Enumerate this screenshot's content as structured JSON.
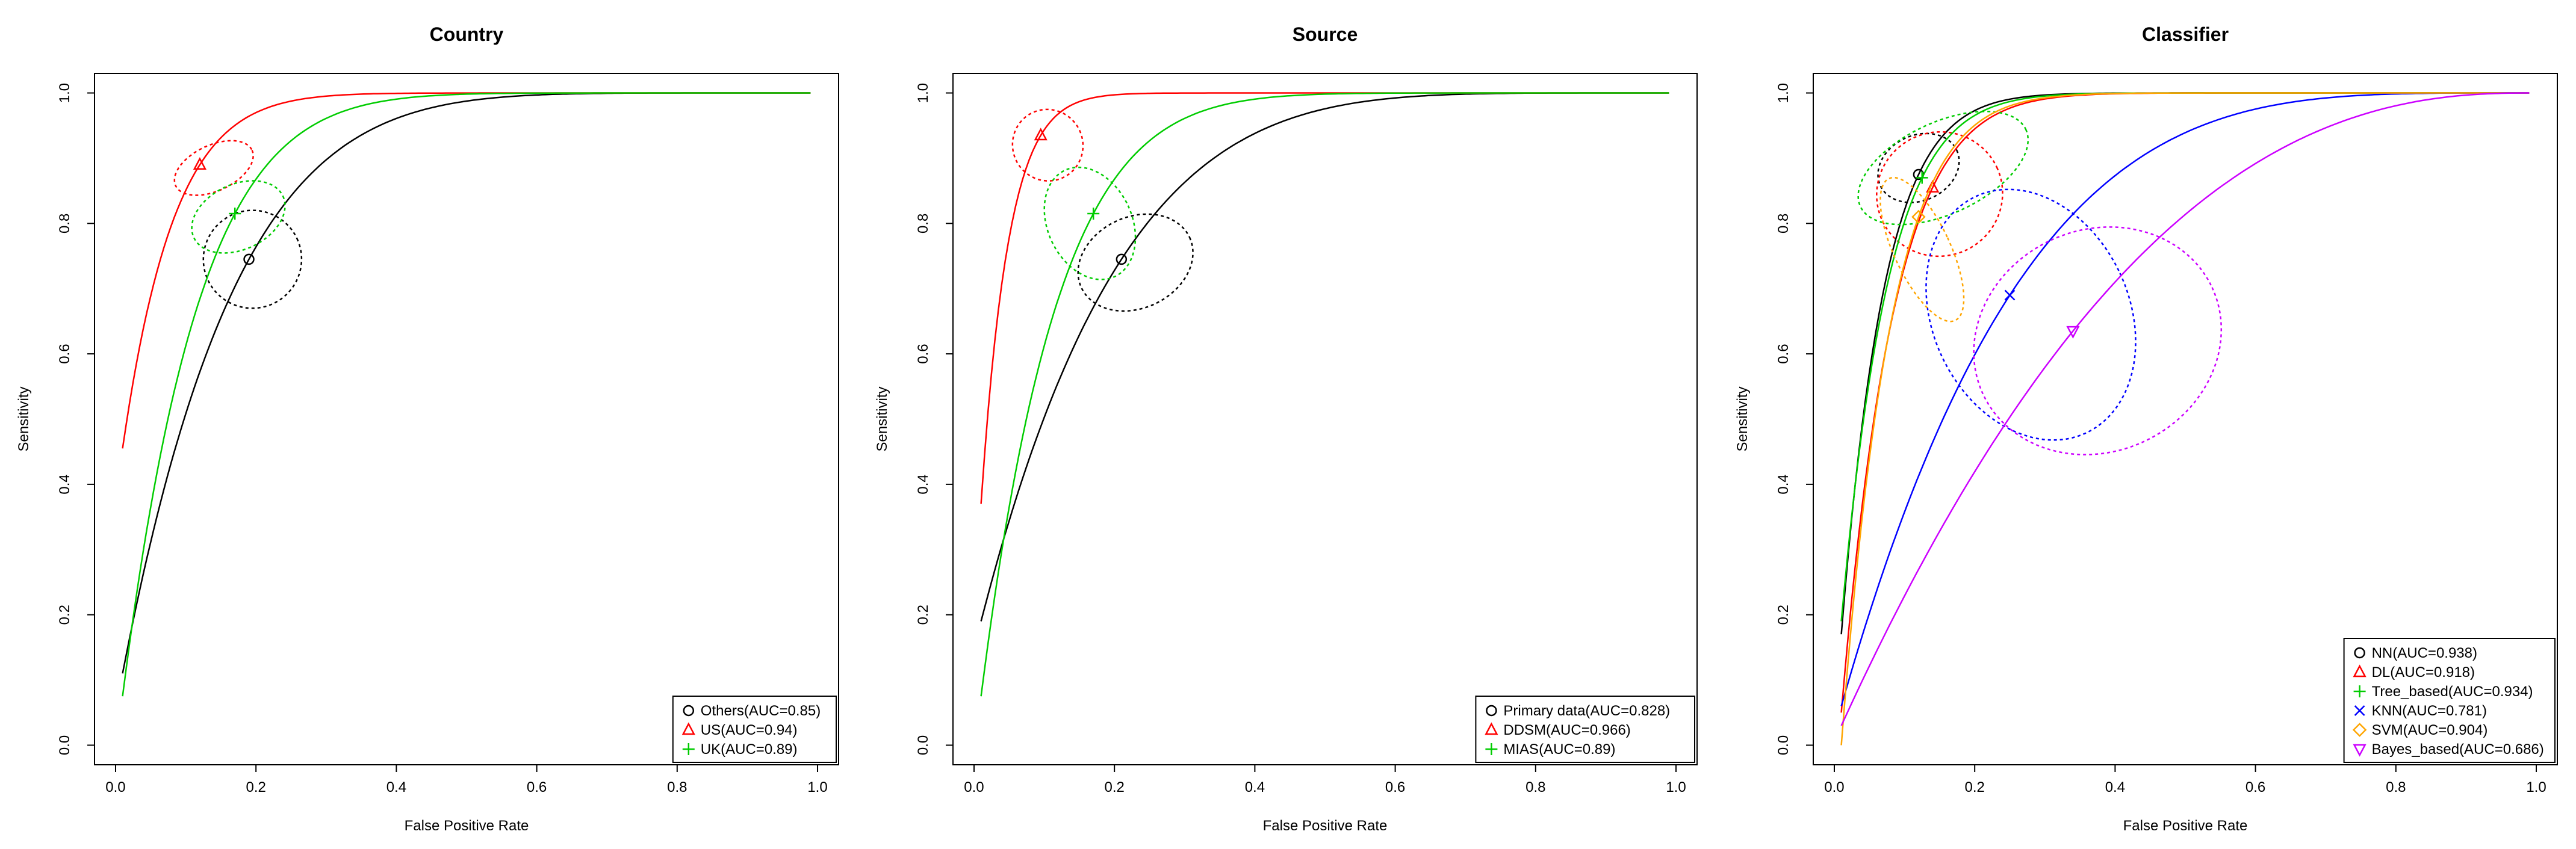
{
  "chart_data": [
    {
      "type": "line",
      "title": "Country",
      "xlabel": "False Positive Rate",
      "ylabel": "Sensitivity",
      "xlim": [
        0,
        1
      ],
      "ylim": [
        0,
        1
      ],
      "xticks": [
        "0.0",
        "0.2",
        "0.4",
        "0.6",
        "0.8",
        "1.0"
      ],
      "yticks": [
        "0.0",
        "0.2",
        "0.4",
        "0.6",
        "0.8",
        "1.0"
      ],
      "legend_position": "bottom-right",
      "series": [
        {
          "name": "Others(AUC=0.85)",
          "color": "#000000",
          "marker": "circle",
          "point": [
            0.19,
            0.745
          ],
          "start": 0.11,
          "ellipse": {
            "rx": 0.07,
            "ry": 0.075,
            "center": [
              0.195,
              0.745
            ]
          }
        },
        {
          "name": "US(AUC=0.94)",
          "color": "#ff0000",
          "marker": "triangle",
          "point": [
            0.12,
            0.89
          ],
          "start": 0.455,
          "ellipse": {
            "rx": 0.06,
            "ry": 0.035,
            "center": [
              0.14,
              0.885
            ]
          }
        },
        {
          "name": "UK(AUC=0.89)",
          "color": "#00cc00",
          "marker": "plus",
          "point": [
            0.17,
            0.815
          ],
          "start": 0.075,
          "ellipse": {
            "rx": 0.07,
            "ry": 0.05,
            "center": [
              0.175,
              0.81
            ]
          }
        }
      ]
    },
    {
      "type": "line",
      "title": "Source",
      "xlabel": "False Positive Rate",
      "ylabel": "Sensitivity",
      "xlim": [
        0,
        1
      ],
      "ylim": [
        0,
        1
      ],
      "xticks": [
        "0.0",
        "0.2",
        "0.4",
        "0.6",
        "0.8",
        "1.0"
      ],
      "yticks": [
        "0.0",
        "0.2",
        "0.4",
        "0.6",
        "0.8",
        "1.0"
      ],
      "legend_position": "bottom-right",
      "series": [
        {
          "name": "Primary data(AUC=0.828)",
          "color": "#000000",
          "marker": "circle",
          "point": [
            0.21,
            0.745
          ],
          "start": 0.19,
          "ellipse": {
            "rx": 0.085,
            "ry": 0.07,
            "center": [
              0.23,
              0.74
            ]
          }
        },
        {
          "name": "DDSM(AUC=0.966)",
          "color": "#ff0000",
          "marker": "triangle",
          "point": [
            0.095,
            0.935
          ],
          "start": 0.37,
          "ellipse": {
            "rx": 0.05,
            "ry": 0.055,
            "center": [
              0.105,
              0.92
            ]
          }
        },
        {
          "name": "MIAS(AUC=0.89)",
          "color": "#00cc00",
          "marker": "plus",
          "point": [
            0.17,
            0.815
          ],
          "start": 0.075,
          "ellipse": {
            "rx": 0.06,
            "ry": 0.09,
            "center": [
              0.165,
              0.8
            ]
          }
        }
      ]
    },
    {
      "type": "line",
      "title": "Classifier",
      "xlabel": "False Positive Rate",
      "ylabel": "Sensitivity",
      "xlim": [
        0,
        1
      ],
      "ylim": [
        0,
        1
      ],
      "xticks": [
        "0.0",
        "0.2",
        "0.4",
        "0.6",
        "0.8",
        "1.0"
      ],
      "yticks": [
        "0.0",
        "0.2",
        "0.4",
        "0.6",
        "0.8",
        "1.0"
      ],
      "legend_position": "bottom-right",
      "series": [
        {
          "name": "NN(AUC=0.938)",
          "color": "#000000",
          "marker": "circle",
          "point": [
            0.12,
            0.875
          ],
          "start": 0.17,
          "ellipse": {
            "rx": 0.06,
            "ry": 0.05,
            "center": [
              0.12,
              0.885
            ]
          }
        },
        {
          "name": "DL(AUC=0.918)",
          "color": "#ff0000",
          "marker": "triangle",
          "point": [
            0.14,
            0.855
          ],
          "start": 0.05,
          "ellipse": {
            "rx": 0.09,
            "ry": 0.095,
            "center": [
              0.15,
              0.845
            ]
          }
        },
        {
          "name": "Tree_based(AUC=0.934)",
          "color": "#00cc00",
          "marker": "plus",
          "point": [
            0.125,
            0.87
          ],
          "start": 0.19,
          "ellipse": {
            "rx": 0.13,
            "ry": 0.07,
            "center": [
              0.155,
              0.885
            ]
          }
        },
        {
          "name": "KNN(AUC=0.781)",
          "color": "#0000ff",
          "marker": "cross",
          "point": [
            0.25,
            0.69
          ],
          "start": 0.06,
          "ellipse": {
            "rx": 0.14,
            "ry": 0.2,
            "center": [
              0.28,
              0.66
            ]
          }
        },
        {
          "name": "SVM(AUC=0.904)",
          "color": "#ffa500",
          "marker": "diamond",
          "point": [
            0.12,
            0.81
          ],
          "start": 0.0,
          "ellipse": {
            "rx": 0.04,
            "ry": 0.12,
            "center": [
              0.125,
              0.76
            ]
          }
        },
        {
          "name": "Bayes_based(AUC=0.686)",
          "color": "#cc00ff",
          "marker": "down-triangle",
          "point": [
            0.34,
            0.635
          ],
          "start": 0.03,
          "ellipse": {
            "rx": 0.18,
            "ry": 0.17,
            "center": [
              0.375,
              0.62
            ]
          }
        }
      ]
    }
  ]
}
